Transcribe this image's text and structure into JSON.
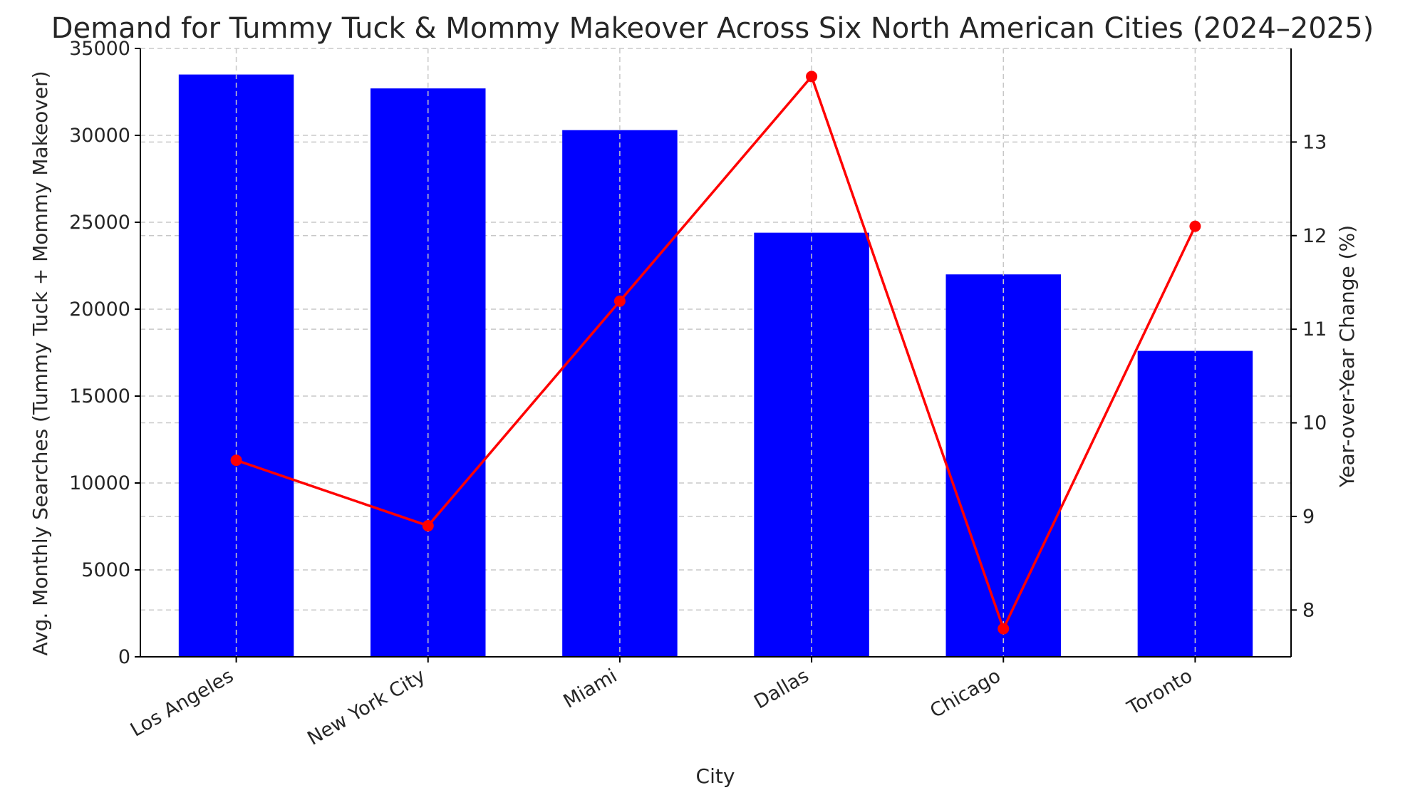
{
  "chart_data": {
    "type": "bar",
    "title": "Demand for Tummy Tuck & Mommy Makeover Across Six North American Cities (2024–2025)",
    "xlabel": "City",
    "ylabel": "Avg. Monthly Searches (Tummy Tuck + Mommy Makeover)",
    "y2label": "Year-over-Year Change (%)",
    "categories": [
      "Los Angeles",
      "New York City",
      "Miami",
      "Dallas",
      "Chicago",
      "Toronto"
    ],
    "series": [
      {
        "type": "bar",
        "axis": "left",
        "values": [
          33500,
          32700,
          30300,
          24400,
          22000,
          17600
        ],
        "color": "#0000ff"
      },
      {
        "type": "line",
        "axis": "right",
        "values": [
          9.6,
          8.9,
          11.3,
          13.7,
          7.8,
          12.1
        ],
        "color": "#ff0000",
        "marker": "circle"
      }
    ],
    "ylim": [
      0,
      35000
    ],
    "yticks": [
      0,
      5000,
      10000,
      15000,
      20000,
      25000,
      30000,
      35000
    ],
    "y2lim": [
      7.5,
      14.0
    ],
    "y2ticks": [
      8,
      9,
      10,
      11,
      12,
      13
    ],
    "grid": true
  }
}
